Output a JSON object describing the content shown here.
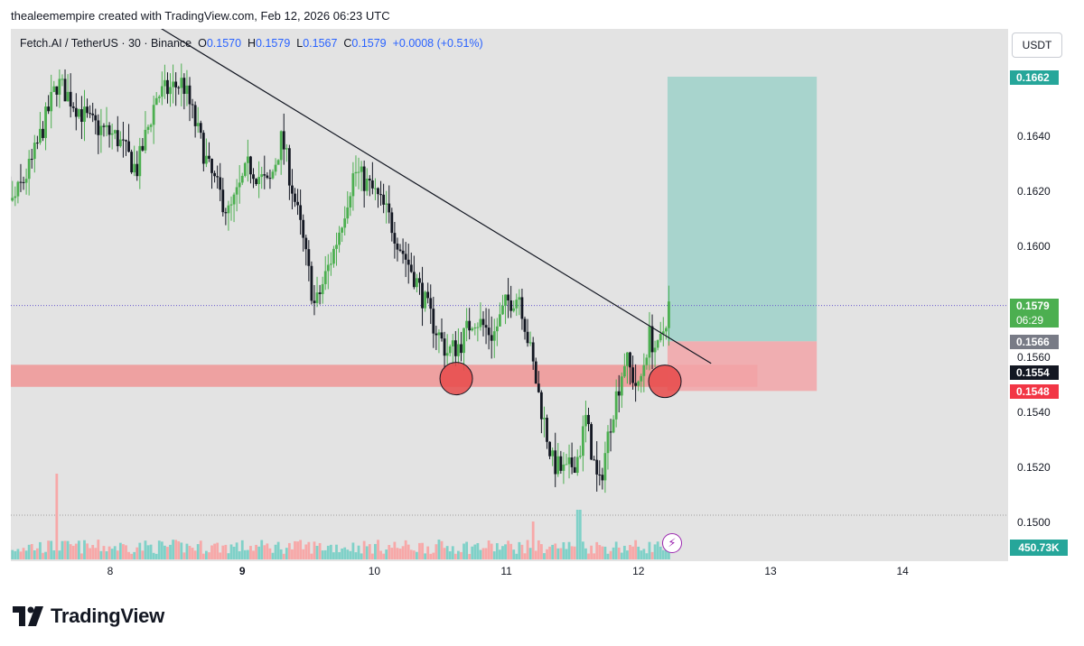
{
  "attribution": "thealeemempire created with TradingView.com, Feb 12, 2026 06:23 UTC",
  "legend": {
    "prefix": "Fetch.AI / TetherUS · 30 · Binance",
    "o_label": "O",
    "o_value": "0.1570",
    "h_label": "H",
    "h_value": "0.1579",
    "l_label": "L",
    "l_value": "0.1567",
    "c_label": "C",
    "c_value": "0.1579",
    "change": "+0.0008 (+0.51%)"
  },
  "currency": "USDT",
  "price_tags": {
    "target": "0.1662",
    "last_price": "0.1579",
    "countdown": "06:29",
    "entry": "0.1566",
    "crosshair": "0.1554",
    "stop": "0.1548"
  },
  "volume_label": "450.73K",
  "brand": "TradingView",
  "colors": {
    "up": "#26a69a",
    "candle_up": "#4caf50",
    "down": "#131722",
    "vol_up": "#7fd1c8",
    "vol_down": "#f7a8a8",
    "zone": "#f28b8b",
    "profit": "#9ed1c9",
    "loss": "#f2a5a8"
  },
  "chart_data": {
    "type": "candlestick",
    "symbol": "Fetch.AI / TetherUS",
    "timeframe": "30",
    "exchange": "Binance",
    "y_ticks": [
      "0.1640",
      "0.1620",
      "0.1600",
      "0.1560",
      "0.1540",
      "0.1520",
      "0.1500"
    ],
    "x_ticks": [
      "8",
      "9",
      "10",
      "11",
      "12",
      "13",
      "14"
    ],
    "x_ticks_bold": [
      "9"
    ],
    "ylim": [
      0.1492,
      0.1685
    ],
    "price_path": [
      [
        7.1,
        0.1651
      ],
      [
        7.25,
        0.1615
      ],
      [
        7.4,
        0.163
      ],
      [
        7.6,
        0.166
      ],
      [
        7.85,
        0.1645
      ],
      [
        8.05,
        0.164
      ],
      [
        8.2,
        0.1628
      ],
      [
        8.35,
        0.1655
      ],
      [
        8.55,
        0.166
      ],
      [
        8.75,
        0.1628
      ],
      [
        8.9,
        0.1612
      ],
      [
        9.05,
        0.163
      ],
      [
        9.2,
        0.1622
      ],
      [
        9.3,
        0.164
      ],
      [
        9.45,
        0.1605
      ],
      [
        9.55,
        0.1578
      ],
      [
        9.7,
        0.16
      ],
      [
        9.85,
        0.1628
      ],
      [
        10.0,
        0.162
      ],
      [
        10.1,
        0.1612
      ],
      [
        10.2,
        0.16
      ],
      [
        10.3,
        0.159
      ],
      [
        10.45,
        0.1572
      ],
      [
        10.55,
        0.1562
      ],
      [
        10.65,
        0.1565
      ],
      [
        10.75,
        0.1575
      ],
      [
        10.9,
        0.1568
      ],
      [
        11.0,
        0.158
      ],
      [
        11.1,
        0.1583
      ],
      [
        11.15,
        0.157
      ],
      [
        11.25,
        0.1545
      ],
      [
        11.35,
        0.1522
      ],
      [
        11.45,
        0.1518
      ],
      [
        11.55,
        0.1525
      ],
      [
        11.6,
        0.1538
      ],
      [
        11.7,
        0.1512
      ],
      [
        11.8,
        0.154
      ],
      [
        11.9,
        0.156
      ],
      [
        12.0,
        0.1548
      ],
      [
        12.08,
        0.1568
      ],
      [
        12.15,
        0.1562
      ],
      [
        12.23,
        0.1579
      ]
    ],
    "volume_spikes": [
      [
        7.6,
        0.95
      ],
      [
        11.2,
        0.42
      ],
      [
        11.55,
        0.55
      ]
    ],
    "trendline": {
      "start": [
        8.3,
        0.1682
      ],
      "end": [
        12.55,
        0.1558
      ]
    },
    "support_zone": {
      "from": 7.0,
      "to": 12.9,
      "low": 0.15495,
      "high": 0.15575
    },
    "circles": [
      [
        10.62,
        0.15525
      ],
      [
        12.2,
        0.15515
      ]
    ],
    "position": {
      "from": 12.22,
      "to": 13.35,
      "entry": 0.1566,
      "target": 0.1662,
      "stop": 0.1548
    },
    "last_price": 0.1579
  }
}
